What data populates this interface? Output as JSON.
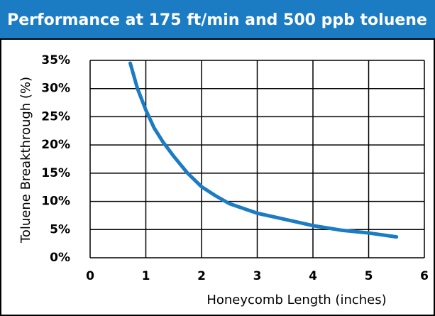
{
  "chart_data": {
    "type": "line",
    "title": "Performance at 175 ft/min and 500 ppb toluene",
    "x_label": "Honeycomb Length (inches)",
    "y_label": "Toluene Breakthrough (%)",
    "series": [
      {
        "name": "Toluene Breakthrough",
        "color": "#1b7cc4",
        "x": [
          0.72,
          0.85,
          1,
          1.15,
          1.31,
          1.5,
          1.75,
          2,
          2.25,
          2.5,
          3,
          3.5,
          4,
          4.5,
          5,
          5.5
        ],
        "values": [
          34.5,
          30,
          26.2,
          23,
          20.5,
          18,
          15,
          12.6,
          11,
          9.6,
          7.9,
          6.8,
          5.7,
          4.9,
          4.4,
          3.7
        ]
      }
    ],
    "xlim": [
      0,
      6
    ],
    "xticks": [
      0,
      1,
      2,
      3,
      4,
      5,
      6
    ],
    "ylim": [
      0,
      35
    ],
    "yticks": [
      {
        "value": 0,
        "label": "0%"
      },
      {
        "value": 5,
        "label": "5%"
      },
      {
        "value": 10,
        "label": "10%"
      },
      {
        "value": 15,
        "label": "15%"
      },
      {
        "value": 20,
        "label": "20%"
      },
      {
        "value": 25,
        "label": "25%"
      },
      {
        "value": 30,
        "label": "30%"
      },
      {
        "value": 35,
        "label": "35%"
      }
    ],
    "grid": true
  }
}
